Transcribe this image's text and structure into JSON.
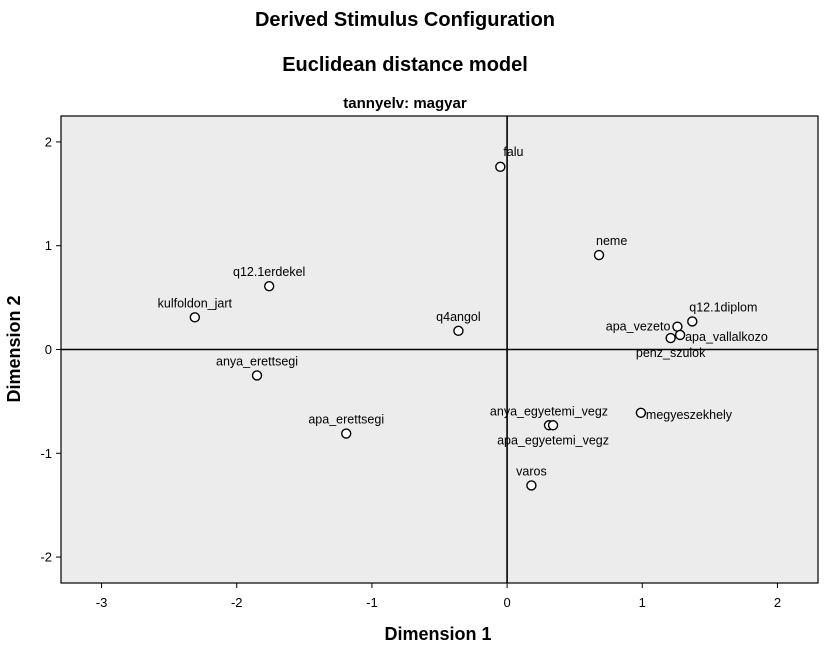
{
  "chart_data": {
    "type": "scatter",
    "title": "Derived Stimulus Configuration",
    "subtitle": "Euclidean distance model",
    "panel_title": "tannyelv: magyar",
    "xlabel": "Dimension 1",
    "ylabel": "Dimension 2",
    "xlim": [
      -3.3,
      2.3
    ],
    "ylim": [
      -2.25,
      2.25
    ],
    "xticks": [
      -3,
      -2,
      -1,
      0,
      1,
      2
    ],
    "yticks": [
      -2,
      -1,
      0,
      1,
      2
    ],
    "reference_lines": {
      "x": 0,
      "y": 0
    },
    "grid": false,
    "plot_background": "#ececec",
    "points": [
      {
        "label": "falu",
        "x": -0.05,
        "y": 1.76,
        "label_anchor": "start",
        "label_side": "above-right"
      },
      {
        "label": "neme",
        "x": 0.68,
        "y": 0.91,
        "label_anchor": "start",
        "label_side": "above"
      },
      {
        "label": "q12.1erdekel",
        "x": -1.76,
        "y": 0.61,
        "label_anchor": "middle",
        "label_side": "above"
      },
      {
        "label": "kulfoldon_jart",
        "x": -2.31,
        "y": 0.31,
        "label_anchor": "middle",
        "label_side": "above"
      },
      {
        "label": "q4angol",
        "x": -0.36,
        "y": 0.18,
        "label_anchor": "middle",
        "label_side": "above"
      },
      {
        "label": "q12.1diplom",
        "x": 1.37,
        "y": 0.27,
        "label_anchor": "start",
        "label_side": "above"
      },
      {
        "label": "apa_vezeto",
        "x": 1.26,
        "y": 0.22,
        "label_anchor": "end",
        "label_side": "left"
      },
      {
        "label": "apa_vallalkozo",
        "x": 1.28,
        "y": 0.14,
        "label_anchor": "start",
        "label_side": "right"
      },
      {
        "label": "penz_szulok",
        "x": 1.21,
        "y": 0.11,
        "label_anchor": "middle",
        "label_side": "below"
      },
      {
        "label": "anya_erettsegi",
        "x": -1.85,
        "y": -0.25,
        "label_anchor": "middle",
        "label_side": "above"
      },
      {
        "label": "apa_erettsegi",
        "x": -1.19,
        "y": -0.81,
        "label_anchor": "middle",
        "label_side": "above"
      },
      {
        "label": "anya_egyetemi_vegz",
        "x": 0.31,
        "y": -0.73,
        "label_anchor": "middle",
        "label_side": "above"
      },
      {
        "label": "apa_egyetemi_vegz",
        "x": 0.34,
        "y": -0.73,
        "label_anchor": "middle",
        "label_side": "below"
      },
      {
        "label": "megyeszekhely",
        "x": 0.99,
        "y": -0.61,
        "label_anchor": "start",
        "label_side": "right"
      },
      {
        "label": "varos",
        "x": 0.18,
        "y": -1.31,
        "label_anchor": "middle",
        "label_side": "above"
      }
    ]
  }
}
